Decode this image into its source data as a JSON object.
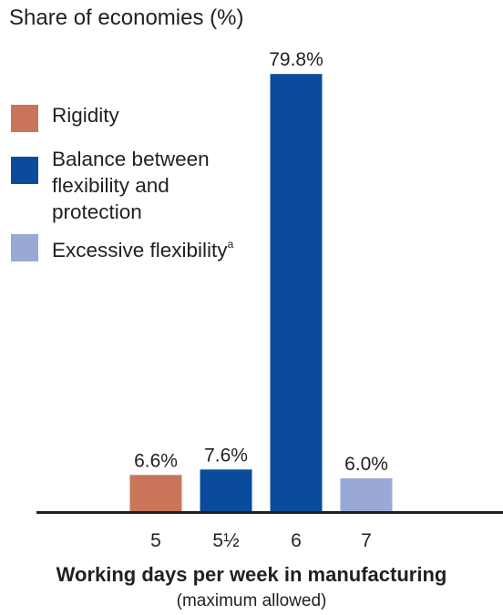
{
  "chart_data": {
    "type": "bar",
    "ylabel": "Share of economies (%)",
    "xlabel": "Working days per week in manufacturing",
    "xlabel_sub": "(maximum allowed)",
    "categories": [
      "5",
      "5½",
      "6",
      "7"
    ],
    "values": [
      6.6,
      7.6,
      79.8,
      6.0
    ],
    "value_labels": [
      "6.6%",
      "7.6%",
      "79.8%",
      "6.0%"
    ],
    "bar_groups": [
      "rigidity",
      "balance",
      "balance",
      "excessive"
    ],
    "ylim": [
      0,
      80
    ],
    "grid": false,
    "legend_position": "top-left",
    "legend": [
      {
        "key": "rigidity",
        "label": "Rigidity",
        "superscript": "",
        "color": "#c8755a"
      },
      {
        "key": "balance",
        "label": "Balance between flexibility and protection",
        "superscript": "",
        "color": "#0a4c9b"
      },
      {
        "key": "excessive",
        "label": "Excessive flexibility",
        "superscript": "a",
        "color": "#98a9d5"
      }
    ]
  }
}
